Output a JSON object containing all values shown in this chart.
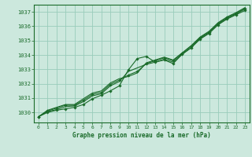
{
  "bg_color": "#cce8dd",
  "grid_color": "#99ccbb",
  "line_color": "#1a6b2a",
  "text_color": "#1a6b2a",
  "xlabel": "Graphe pression niveau de la mer (hPa)",
  "xlim": [
    -0.5,
    23.5
  ],
  "ylim": [
    1029.3,
    1037.5
  ],
  "yticks": [
    1030,
    1031,
    1032,
    1033,
    1034,
    1035,
    1036,
    1037
  ],
  "xticks": [
    0,
    1,
    2,
    3,
    4,
    5,
    6,
    7,
    8,
    9,
    10,
    11,
    12,
    13,
    14,
    15,
    16,
    17,
    18,
    19,
    20,
    21,
    22,
    23
  ],
  "series": [
    [
      1029.7,
      1030.0,
      1030.15,
      1030.25,
      1030.35,
      1030.55,
      1030.95,
      1031.2,
      1031.5,
      1031.85,
      1032.95,
      1033.75,
      1033.9,
      1033.5,
      1033.65,
      1033.4,
      1034.05,
      1034.5,
      1035.1,
      1035.5,
      1036.1,
      1036.5,
      1036.8,
      1037.1
    ],
    [
      1029.7,
      1030.05,
      1030.2,
      1030.4,
      1030.45,
      1030.75,
      1031.15,
      1031.3,
      1031.85,
      1032.15,
      1032.85,
      1033.1,
      1033.35,
      1033.5,
      1033.7,
      1033.5,
      1034.05,
      1034.5,
      1035.15,
      1035.55,
      1036.15,
      1036.55,
      1036.85,
      1037.2
    ],
    [
      1029.7,
      1030.1,
      1030.3,
      1030.5,
      1030.5,
      1030.85,
      1031.25,
      1031.4,
      1031.95,
      1032.25,
      1032.6,
      1032.85,
      1033.4,
      1033.6,
      1033.8,
      1033.6,
      1034.1,
      1034.6,
      1035.2,
      1035.6,
      1036.2,
      1036.6,
      1036.9,
      1037.25
    ],
    [
      1029.7,
      1030.15,
      1030.35,
      1030.55,
      1030.55,
      1030.95,
      1031.35,
      1031.5,
      1032.05,
      1032.35,
      1032.5,
      1032.75,
      1033.45,
      1033.65,
      1033.85,
      1033.65,
      1034.15,
      1034.65,
      1035.25,
      1035.65,
      1036.25,
      1036.65,
      1036.95,
      1037.3
    ]
  ],
  "marker_series": [
    0,
    2
  ]
}
